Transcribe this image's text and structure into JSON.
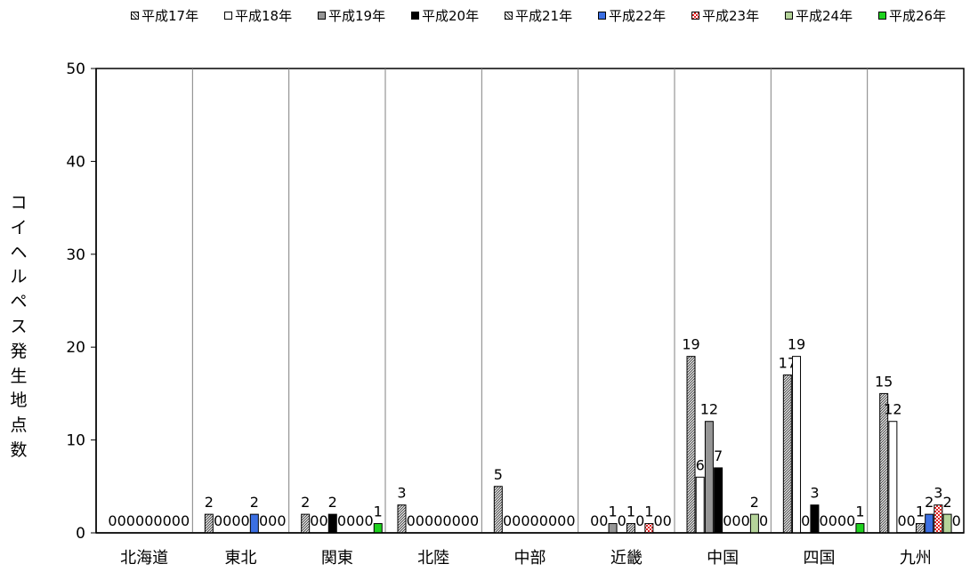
{
  "chart_data": {
    "type": "bar",
    "title": "",
    "xlabel": "",
    "ylabel": "コイヘルペス発生地点数",
    "ylim": [
      0,
      50
    ],
    "yticks": [
      0,
      10,
      20,
      30,
      40,
      50
    ],
    "grid": "vertical category separators",
    "legend_position": "top",
    "categories": [
      "北海道",
      "東北",
      "関東",
      "北陸",
      "中部",
      "近畿",
      "中国",
      "四国",
      "九州"
    ],
    "series": [
      {
        "name": "平成17年",
        "pattern": "hatch",
        "color": "#808080",
        "values": [
          0,
          2,
          2,
          3,
          5,
          0,
          19,
          17,
          15
        ]
      },
      {
        "name": "平成18年",
        "pattern": "solid",
        "color": "#ffffff",
        "values": [
          0,
          0,
          0,
          0,
          0,
          0,
          6,
          19,
          12
        ]
      },
      {
        "name": "平成19年",
        "pattern": "solid",
        "color": "#969696",
        "values": [
          0,
          0,
          0,
          0,
          0,
          1,
          12,
          0,
          0
        ]
      },
      {
        "name": "平成20年",
        "pattern": "solid",
        "color": "#000000",
        "values": [
          0,
          0,
          2,
          0,
          0,
          0,
          7,
          3,
          0
        ]
      },
      {
        "name": "平成21年",
        "pattern": "hatch",
        "color": "#808080",
        "values": [
          0,
          0,
          0,
          0,
          0,
          1,
          0,
          0,
          1
        ]
      },
      {
        "name": "平成22年",
        "pattern": "solid",
        "color": "#3b6fe3",
        "values": [
          0,
          2,
          0,
          0,
          0,
          0,
          0,
          0,
          2
        ]
      },
      {
        "name": "平成23年",
        "pattern": "checker",
        "color": "#e02020",
        "values": [
          0,
          0,
          0,
          0,
          0,
          1,
          0,
          0,
          3
        ]
      },
      {
        "name": "平成24年",
        "pattern": "solid",
        "color": "#b5d49a",
        "values": [
          0,
          0,
          0,
          0,
          0,
          0,
          2,
          0,
          2
        ]
      },
      {
        "name": "平成26年",
        "pattern": "solid",
        "color": "#1ed21e",
        "values": [
          0,
          0,
          1,
          0,
          0,
          0,
          0,
          1,
          0
        ]
      }
    ]
  }
}
